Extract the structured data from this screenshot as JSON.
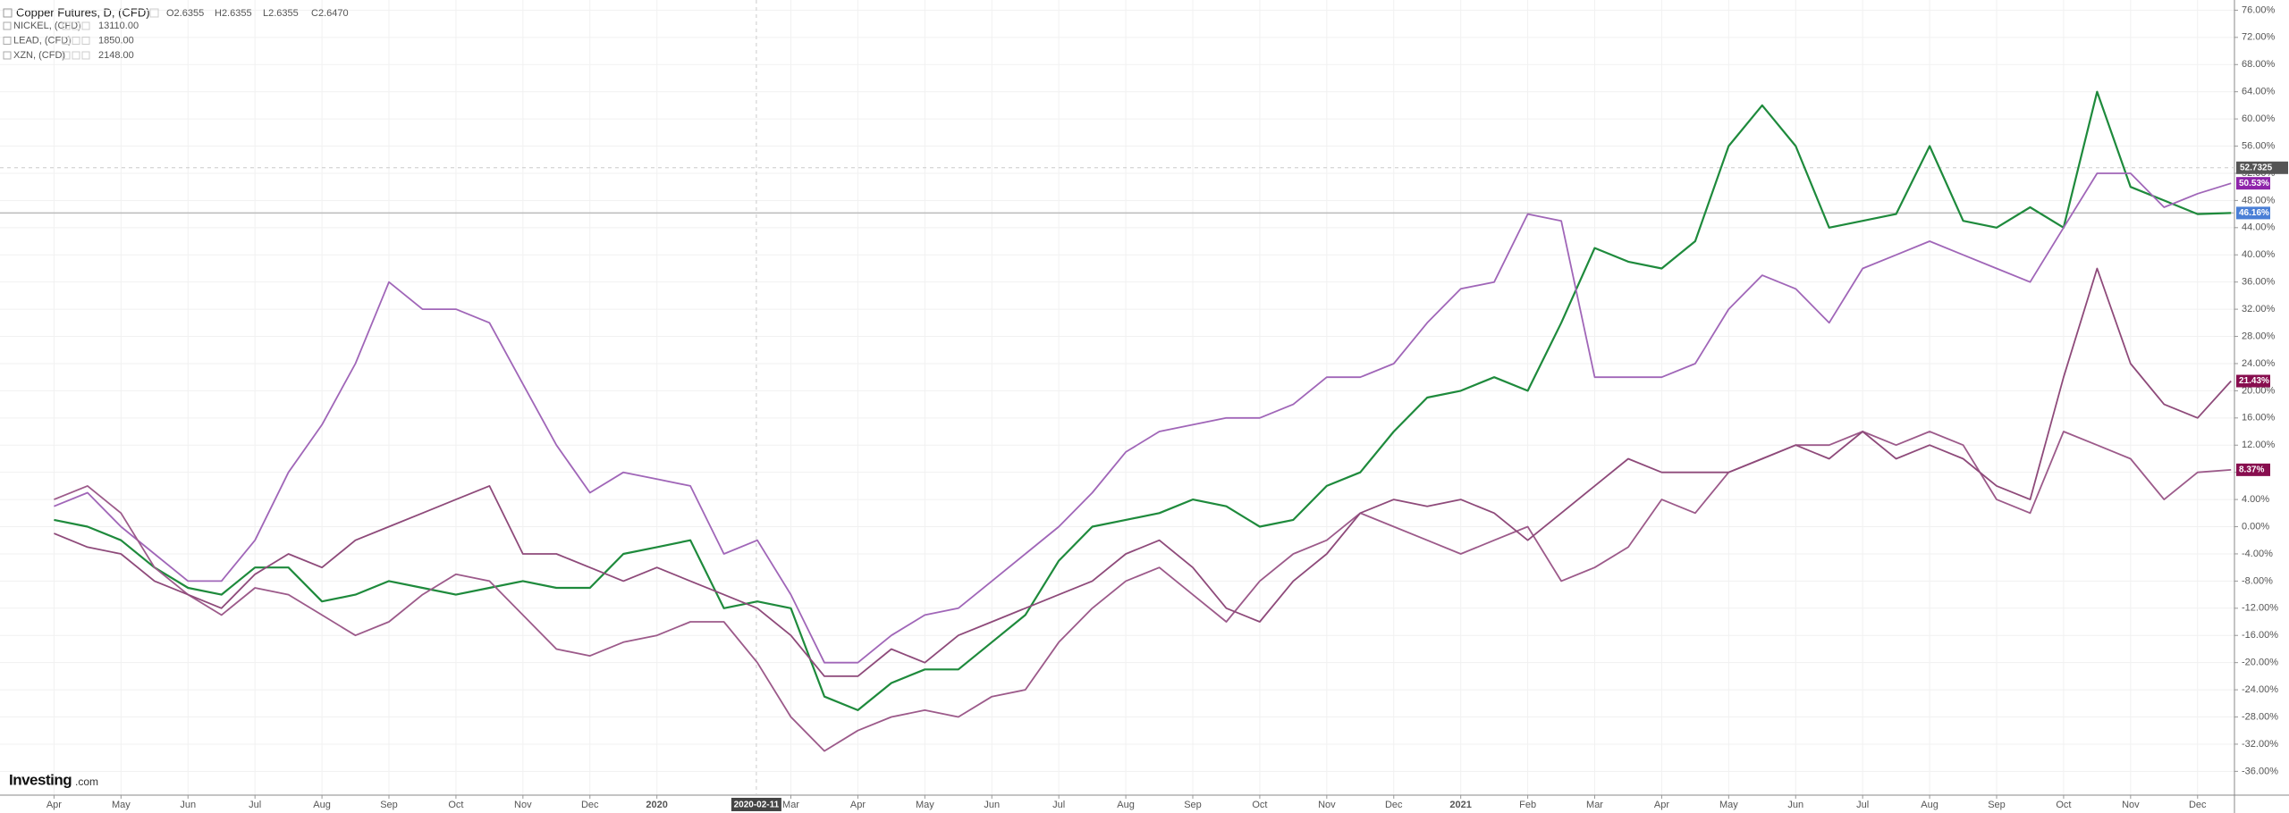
{
  "chart_data": {
    "type": "line",
    "title": "Copper Futures, D, (CFD)",
    "ohlc": [
      "O2.6355",
      "H2.6355",
      "L2.6355",
      "C2.6470"
    ],
    "price_tag": "52.7325",
    "crosshair_label": "2020-02-11",
    "logo": "Investing",
    "logo_suffix": ".com",
    "grid": true,
    "categories": [
      "Apr",
      null,
      "May",
      null,
      "Jun",
      null,
      "Jul",
      null,
      "Aug",
      null,
      "Sep",
      null,
      "Oct",
      null,
      "Nov",
      null,
      "Dec",
      null,
      "2020",
      null,
      null,
      null,
      "Mar",
      null,
      "Apr",
      null,
      "May",
      null,
      "Jun",
      null,
      "Jul",
      null,
      "Aug",
      null,
      "Sep",
      null,
      "Oct",
      null,
      "Nov",
      null,
      "Dec",
      null,
      "2021",
      null,
      "Feb",
      null,
      "Mar",
      null,
      "Apr",
      null,
      "May",
      null,
      "Jun",
      null,
      "Jul",
      null,
      "Aug",
      null,
      "Sep",
      null,
      "Oct",
      null,
      "Nov",
      null,
      "Dec",
      null
    ],
    "ylim": [
      -39.5,
      77.5
    ],
    "yticks": [
      {
        "value": 76,
        "label": "76.00%"
      },
      {
        "value": 72,
        "label": "72.00%"
      },
      {
        "value": 68,
        "label": "68.00%"
      },
      {
        "value": 64,
        "label": "64.00%"
      },
      {
        "value": 60,
        "label": "60.00%"
      },
      {
        "value": 56,
        "label": "56.00%"
      },
      {
        "value": 52,
        "label": "52.00%"
      },
      {
        "value": 48,
        "label": "48.00%"
      },
      {
        "value": 44,
        "label": "44.00%"
      },
      {
        "value": 40,
        "label": "40.00%"
      },
      {
        "value": 36,
        "label": "36.00%"
      },
      {
        "value": 32,
        "label": "32.00%"
      },
      {
        "value": 28,
        "label": "28.00%"
      },
      {
        "value": 24,
        "label": "24.00%"
      },
      {
        "value": 20,
        "label": "20.00%"
      },
      {
        "value": 16,
        "label": "16.00%"
      },
      {
        "value": 12,
        "label": "12.00%"
      },
      {
        "value": 8,
        "label": "8.00%"
      },
      {
        "value": 4,
        "label": "4.00%"
      },
      {
        "value": 0,
        "label": "0.00%"
      },
      {
        "value": -4,
        "label": "-4.00%"
      },
      {
        "value": -8,
        "label": "-8.00%"
      },
      {
        "value": -12,
        "label": "-12.00%"
      },
      {
        "value": -16,
        "label": "-16.00%"
      },
      {
        "value": -20,
        "label": "-20.00%"
      },
      {
        "value": -24,
        "label": "-24.00%"
      },
      {
        "value": -28,
        "label": "-28.00%"
      },
      {
        "value": -32,
        "label": "-32.00%"
      },
      {
        "value": -36,
        "label": "-36.00%"
      }
    ],
    "series": [
      {
        "name": "Copper Futures",
        "color": "#1e8a3c",
        "tag_color": "#4a7fd6",
        "end_label": "46.16%",
        "values": [
          1,
          0,
          -2,
          -6,
          -9,
          -10,
          -6,
          -6,
          -11,
          -10,
          -8,
          -9,
          -10,
          -9,
          -8,
          -9,
          -9,
          -4,
          -3,
          -2,
          -12,
          -11,
          -12,
          -25,
          -27,
          -23,
          -21,
          -21,
          -17,
          -13,
          -5,
          0,
          1,
          2,
          4,
          3,
          0,
          1,
          6,
          8,
          14,
          19,
          20,
          22,
          20,
          30,
          41,
          39,
          38,
          42,
          56,
          62,
          56,
          44,
          45,
          46,
          56,
          45,
          44,
          47,
          44,
          64,
          50,
          48,
          46,
          46.16
        ]
      },
      {
        "name": "NICKEL, (CFD)",
        "color": "#a066b8",
        "tag_color": "#8e24aa",
        "legend_value": "13110.00",
        "end_label": "50.53%",
        "values": [
          3,
          5,
          0,
          -4,
          -8,
          -8,
          -2,
          8,
          15,
          24,
          36,
          32,
          32,
          30,
          21,
          12,
          5,
          8,
          7,
          6,
          -4,
          -2,
          -10,
          -20,
          -20,
          -16,
          -13,
          -12,
          -8,
          -4,
          0,
          5,
          11,
          14,
          15,
          16,
          16,
          18,
          22,
          22,
          24,
          30,
          35,
          36,
          46,
          45,
          22,
          22,
          22,
          24,
          32,
          37,
          35,
          30,
          38,
          40,
          42,
          40,
          38,
          36,
          44,
          52,
          52,
          47,
          49,
          50.53
        ]
      },
      {
        "name": "LEAD, (CFD)",
        "color": "#9c5a8a",
        "tag_color": "#880e4f",
        "legend_value": "1850.00",
        "end_label": "8.37%",
        "values": [
          4,
          6,
          2,
          -6,
          -10,
          -13,
          -9,
          -10,
          -13,
          -16,
          -14,
          -10,
          -7,
          -8,
          -13,
          -18,
          -19,
          -17,
          -16,
          -14,
          -14,
          -20,
          -28,
          -33,
          -30,
          -28,
          -27,
          -28,
          -25,
          -24,
          -17,
          -12,
          -8,
          -6,
          -10,
          -14,
          -8,
          -4,
          -2,
          2,
          0,
          -2,
          -4,
          -2,
          0,
          -8,
          -6,
          -3,
          4,
          2,
          8,
          10,
          12,
          12,
          14,
          12,
          14,
          12,
          4,
          2,
          14,
          12,
          10,
          4,
          8,
          8.37
        ]
      },
      {
        "name": "XZN, (CFD)",
        "color": "#8e4a7a",
        "tag_color": "#880e4f",
        "legend_value": "2148.00",
        "end_label": "21.43%",
        "values": [
          -1,
          -3,
          -4,
          -8,
          -10,
          -12,
          -7,
          -4,
          -6,
          -2,
          0,
          2,
          4,
          6,
          -4,
          -4,
          -6,
          -8,
          -6,
          -8,
          -10,
          -12,
          -16,
          -22,
          -22,
          -18,
          -20,
          -16,
          -14,
          -12,
          -10,
          -8,
          -4,
          -2,
          -6,
          -12,
          -14,
          -8,
          -4,
          2,
          4,
          3,
          4,
          2,
          -2,
          2,
          6,
          10,
          8,
          8,
          8,
          10,
          12,
          10,
          14,
          10,
          12,
          10,
          6,
          4,
          22,
          38,
          24,
          18,
          16,
          21.43
        ]
      }
    ]
  }
}
